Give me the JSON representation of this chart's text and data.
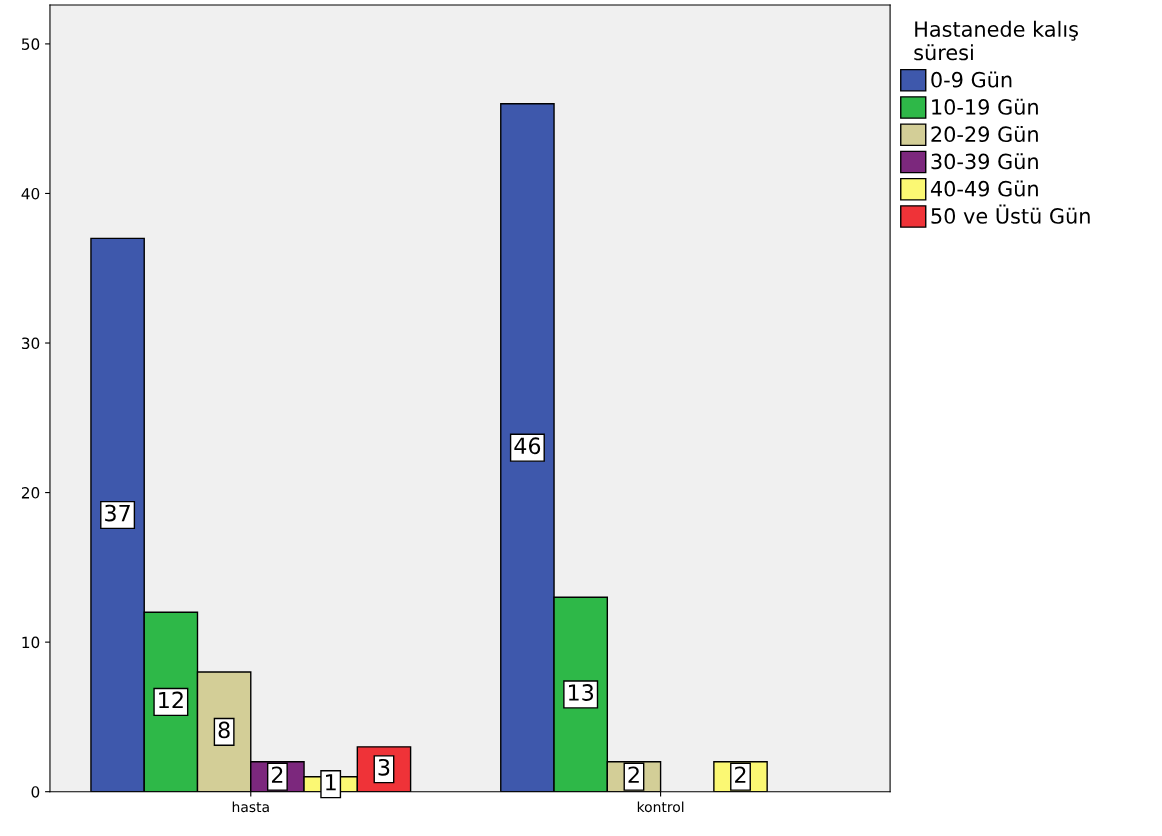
{
  "chart_data": {
    "type": "bar",
    "categories": [
      "hasta",
      "kontrol"
    ],
    "legend_title": "Hastanede kalış\nsüresi",
    "series": [
      {
        "name": "0-9 Gün",
        "color": "#3e58ac",
        "values": [
          37,
          46
        ]
      },
      {
        "name": "10-19 Gün",
        "color": "#2eb848",
        "values": [
          12,
          13
        ]
      },
      {
        "name": "20-29 Gün",
        "color": "#d3ce97",
        "values": [
          8,
          2
        ]
      },
      {
        "name": "30-39 Gün",
        "color": "#7c287d",
        "values": [
          2,
          null
        ]
      },
      {
        "name": "40-49 Gün",
        "color": "#fbf873",
        "values": [
          1,
          2
        ]
      },
      {
        "name": "50 ve Üstü Gün",
        "color": "#ef3338",
        "values": [
          3,
          null
        ]
      }
    ],
    "ylim": [
      0,
      52.6
    ],
    "yticks": [
      0,
      10,
      20,
      30,
      40,
      50
    ],
    "data_labels": true,
    "grid": false,
    "legend": "top right"
  }
}
